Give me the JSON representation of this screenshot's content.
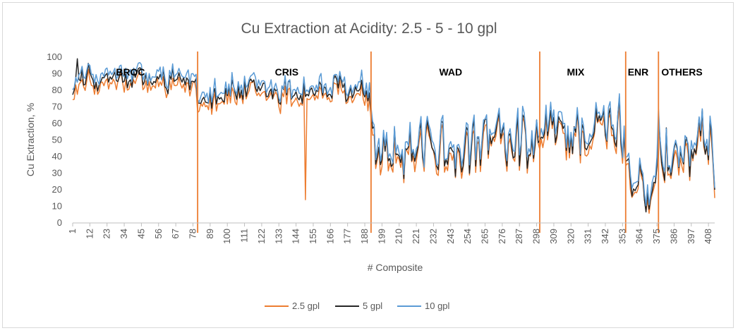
{
  "chart_data": {
    "type": "line",
    "title": "Cu Extraction at Acidity: 2.5 - 5 - 10 gpl",
    "xlabel": "# Composite",
    "ylabel": "Cu Extraction, %",
    "ylim": [
      0,
      100
    ],
    "y_ticks": [
      0,
      10,
      20,
      30,
      40,
      50,
      60,
      70,
      80,
      90,
      100
    ],
    "xlim": [
      1,
      412
    ],
    "x_ticks": [
      1,
      12,
      23,
      34,
      45,
      56,
      67,
      78,
      89,
      100,
      111,
      122,
      133,
      144,
      155,
      166,
      177,
      188,
      199,
      210,
      221,
      232,
      243,
      254,
      265,
      276,
      287,
      298,
      309,
      320,
      331,
      342,
      353,
      364,
      375,
      386,
      397,
      408
    ],
    "grid": false,
    "legend": "bottom",
    "dividers": [
      81,
      192,
      300,
      355,
      376
    ],
    "regions": [
      {
        "label": "BROC",
        "x": 38
      },
      {
        "label": "CRIS",
        "x": 138
      },
      {
        "label": "WAD",
        "x": 243
      },
      {
        "label": "MIX",
        "x": 323
      },
      {
        "label": "ENR",
        "x": 363
      },
      {
        "label": "OTHERS",
        "x": 391
      }
    ],
    "segments": [
      {
        "start": 1,
        "end": 80,
        "min": 76,
        "max": 98,
        "center": 86,
        "amp": 5
      },
      {
        "start": 81,
        "end": 191,
        "min": 58,
        "max": 95,
        "center": 79,
        "amp": 7
      },
      {
        "start": 192,
        "end": 299,
        "min": 16,
        "max": 80,
        "center": 45,
        "amp": 14
      },
      {
        "start": 300,
        "end": 354,
        "min": 22,
        "max": 90,
        "center": 55,
        "amp": 13
      },
      {
        "start": 355,
        "end": 375,
        "min": 6,
        "max": 70,
        "center": 25,
        "amp": 14
      },
      {
        "start": 376,
        "end": 412,
        "min": 8,
        "max": 86,
        "center": 40,
        "amp": 16
      }
    ],
    "anomalies": [
      {
        "x": 150,
        "series": "2.5 gpl",
        "value": 14
      },
      {
        "x": 4,
        "series": "5 gpl",
        "value": 99
      }
    ],
    "series": [
      {
        "name": "2.5 gpl",
        "color": "#ed7d31",
        "offset": -3,
        "seed": 11
      },
      {
        "name": "5 gpl",
        "color": "#262626",
        "offset": 0,
        "seed": 29
      },
      {
        "name": "10 gpl",
        "color": "#5b9bd5",
        "offset": 3,
        "seed": 47
      }
    ]
  }
}
